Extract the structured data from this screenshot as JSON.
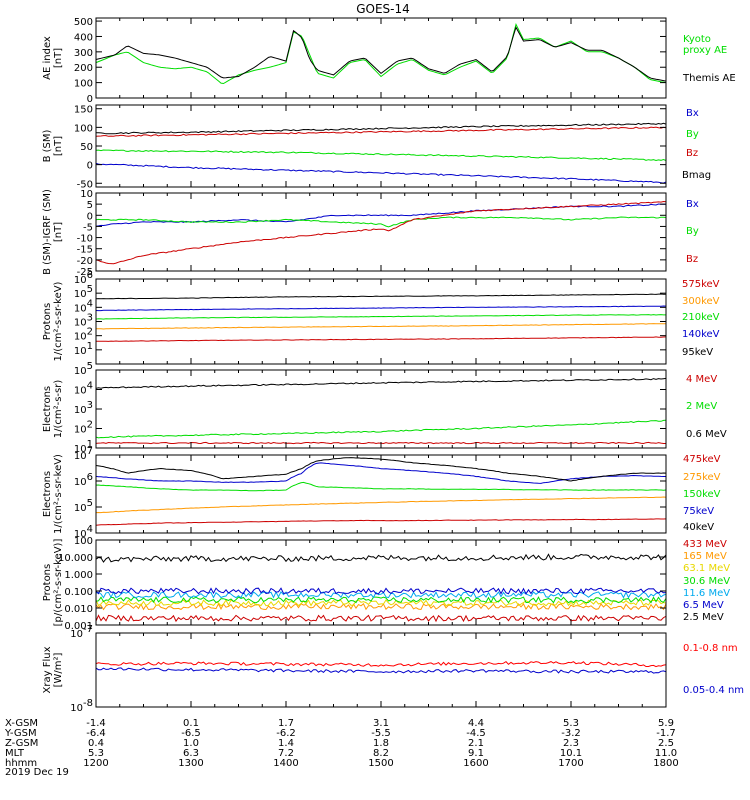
{
  "title": "GOES-14",
  "date": "2019 Dec 19",
  "colors": {
    "black": "#000000",
    "green": "#00dd00",
    "red": "#cc0000",
    "blue": "#0000cc",
    "orange": "#ff9900",
    "yellow": "#e8d800",
    "cyan": "#00aaee",
    "purple": "#aa0077",
    "red_bright": "#ff0000"
  },
  "ephemeris": {
    "rows": [
      {
        "label": "X-GSM",
        "values": [
          "-1.4",
          "0.1",
          "1.7",
          "3.1",
          "4.4",
          "5.3",
          "5.9"
        ]
      },
      {
        "label": "Y-GSM",
        "values": [
          "-6.4",
          "-6.5",
          "-6.2",
          "-5.5",
          "-4.5",
          "-3.2",
          "-1.7"
        ]
      },
      {
        "label": "Z-GSM",
        "values": [
          "0.4",
          "1.0",
          "1.4",
          "1.8",
          "2.1",
          "2.3",
          "2.5"
        ]
      },
      {
        "label": "MLT",
        "values": [
          "5.3",
          "6.3",
          "7.2",
          "8.2",
          "9.1",
          "10.1",
          "11.0"
        ]
      },
      {
        "label": "hhmm",
        "values": [
          "1200",
          "1300",
          "1400",
          "1500",
          "1600",
          "1700",
          "1800"
        ]
      }
    ]
  },
  "chart_data": [
    {
      "type": "line",
      "id": "ae",
      "ylabel": [
        "AE index",
        "[nT]"
      ],
      "ylim": [
        0,
        520
      ],
      "scale": "linear",
      "ticks": [
        {
          "v": 0,
          "t": "0"
        },
        {
          "v": 100,
          "t": "100"
        },
        {
          "v": 200,
          "t": "200"
        },
        {
          "v": 300,
          "t": "300"
        },
        {
          "v": 400,
          "t": "400"
        },
        {
          "v": 500,
          "t": "500"
        }
      ],
      "x": [
        12.0,
        12.2,
        12.33,
        12.5,
        12.67,
        12.83,
        13.0,
        13.17,
        13.33,
        13.5,
        13.67,
        13.83,
        14.0,
        14.08,
        14.17,
        14.25,
        14.33,
        14.5,
        14.67,
        14.83,
        15.0,
        15.17,
        15.33,
        15.5,
        15.67,
        15.83,
        16.0,
        16.17,
        16.33,
        16.42,
        16.5,
        16.67,
        16.83,
        17.0,
        17.17,
        17.33,
        17.5,
        17.67,
        17.83,
        18.0
      ],
      "series": [
        {
          "name": "Kyoto proxy AE",
          "color": "#00dd00",
          "legend": [
            "Kyoto",
            "proxy AE"
          ],
          "values": [
            230,
            280,
            300,
            230,
            200,
            190,
            200,
            170,
            90,
            150,
            180,
            200,
            230,
            430,
            400,
            280,
            160,
            130,
            230,
            250,
            140,
            220,
            250,
            180,
            150,
            200,
            240,
            160,
            260,
            480,
            380,
            390,
            330,
            370,
            300,
            300,
            260,
            200,
            120,
            100
          ]
        },
        {
          "name": "Themis AE",
          "color": "#000000",
          "legend": [
            "Themis AE"
          ],
          "values": [
            250,
            280,
            340,
            290,
            280,
            260,
            230,
            200,
            130,
            140,
            200,
            270,
            240,
            440,
            390,
            250,
            180,
            150,
            240,
            260,
            160,
            240,
            260,
            190,
            160,
            220,
            250,
            170,
            270,
            460,
            370,
            380,
            330,
            360,
            310,
            310,
            260,
            200,
            130,
            110
          ]
        }
      ]
    },
    {
      "type": "line",
      "id": "bsm",
      "ylabel": [
        "B (SM)",
        "[nT]"
      ],
      "ylim": [
        -60,
        160
      ],
      "scale": "linear",
      "ticks": [
        {
          "v": -50,
          "t": "-50"
        },
        {
          "v": 0,
          "t": "0"
        },
        {
          "v": 50,
          "t": "50"
        },
        {
          "v": 100,
          "t": "100"
        },
        {
          "v": 150,
          "t": "150"
        }
      ],
      "x": [
        12,
        13,
        14,
        15,
        16,
        17,
        18
      ],
      "series": [
        {
          "name": "Bx",
          "color": "#0000cc",
          "legend": [
            "Bx"
          ],
          "values": [
            2,
            -8,
            -15,
            -22,
            -30,
            -38,
            -48
          ]
        },
        {
          "name": "By",
          "color": "#00dd00",
          "legend": [
            "By"
          ],
          "values": [
            38,
            36,
            33,
            28,
            23,
            18,
            12
          ]
        },
        {
          "name": "Bz",
          "color": "#cc0000",
          "legend": [
            "Bz"
          ],
          "values": [
            76,
            80,
            84,
            88,
            92,
            96,
            100
          ]
        },
        {
          "name": "Bmag",
          "color": "#000000",
          "legend": [
            "Bmag"
          ],
          "values": [
            84,
            87,
            92,
            97,
            102,
            106,
            110
          ]
        }
      ]
    },
    {
      "type": "line",
      "id": "bigrf",
      "ylabel": [
        "B (SM)-IGRF (SM)",
        "[nT]"
      ],
      "ylim": [
        -25,
        10
      ],
      "scale": "linear",
      "ticks": [
        {
          "v": -25,
          "t": "-25"
        },
        {
          "v": -20,
          "t": "-20"
        },
        {
          "v": -15,
          "t": "-15"
        },
        {
          "v": -10,
          "t": "-10"
        },
        {
          "v": -5,
          "t": "-5"
        },
        {
          "v": 0,
          "t": "0"
        },
        {
          "v": 5,
          "t": "5"
        },
        {
          "v": 10,
          "t": "10"
        }
      ],
      "x": [
        12.0,
        12.17,
        12.5,
        13.0,
        13.5,
        14.0,
        14.5,
        15.0,
        15.08,
        15.33,
        15.67,
        16.0,
        16.5,
        17.0,
        17.5,
        18.0
      ],
      "series": [
        {
          "name": "Bx",
          "color": "#0000cc",
          "legend": [
            "Bx"
          ],
          "values": [
            -5,
            -4,
            -3,
            -3,
            -2,
            -3,
            0,
            0,
            0,
            0,
            1,
            2,
            3,
            4,
            4,
            5
          ]
        },
        {
          "name": "By",
          "color": "#00dd00",
          "legend": [
            "By"
          ],
          "values": [
            -2,
            -2,
            -2,
            -3,
            -3,
            -2,
            -3,
            -4,
            -5,
            -2,
            -1,
            -1,
            -1,
            -2,
            -1,
            -1
          ]
        },
        {
          "name": "Bz",
          "color": "#cc0000",
          "legend": [
            "Bz"
          ],
          "values": [
            -20,
            -22,
            -18,
            -15,
            -12,
            -10,
            -8,
            -6,
            -7,
            -2,
            0,
            2,
            3,
            4,
            5,
            6
          ]
        }
      ]
    },
    {
      "type": "line",
      "id": "protons_low",
      "ylabel": [
        "Protons",
        "1/(cm²-s-sr-keV)"
      ],
      "ylim": [
        1,
        1000000
      ],
      "scale": "log",
      "ticks": [
        {
          "v": 10,
          "b": "10",
          "e": "1"
        },
        {
          "v": 100,
          "b": "10",
          "e": "2"
        },
        {
          "v": 1000,
          "b": "10",
          "e": "3"
        },
        {
          "v": 10000,
          "b": "10",
          "e": "4"
        },
        {
          "v": 100000,
          "b": "10",
          "e": "5"
        },
        {
          "v": 1000000,
          "b": "10",
          "e": "6"
        }
      ],
      "x": [
        12,
        13,
        14,
        15,
        16,
        17,
        18
      ],
      "series": [
        {
          "name": "575keV",
          "color": "#cc0000",
          "legend": [
            "575keV"
          ],
          "values": [
            40,
            45,
            50,
            55,
            60,
            70,
            80
          ]
        },
        {
          "name": "300keV",
          "color": "#ff9900",
          "legend": [
            "300keV"
          ],
          "values": [
            300,
            350,
            400,
            450,
            500,
            600,
            700
          ]
        },
        {
          "name": "210keV",
          "color": "#00dd00",
          "legend": [
            "210keV"
          ],
          "values": [
            1500,
            1800,
            2000,
            2200,
            2500,
            2800,
            3000
          ]
        },
        {
          "name": "140keV",
          "color": "#0000cc",
          "legend": [
            "140keV"
          ],
          "values": [
            6000,
            7000,
            8000,
            9000,
            10000,
            11000,
            12000
          ]
        },
        {
          "name": "95keV",
          "color": "#000000",
          "legend": [
            "95keV"
          ],
          "values": [
            40000,
            45000,
            55000,
            60000,
            65000,
            75000,
            85000
          ]
        }
      ]
    },
    {
      "type": "line",
      "id": "electrons_high",
      "ylabel": [
        "Electrons",
        "1/(cm²-s-sr)"
      ],
      "ylim": [
        10,
        100000
      ],
      "scale": "log",
      "ticks": [
        {
          "v": 10,
          "b": "10",
          "e": "1"
        },
        {
          "v": 100,
          "b": "10",
          "e": "2"
        },
        {
          "v": 1000,
          "b": "10",
          "e": "3"
        },
        {
          "v": 10000,
          "b": "10",
          "e": "4"
        },
        {
          "v": 100000,
          "b": "10",
          "e": "5"
        }
      ],
      "x": [
        12,
        13,
        14,
        15,
        16,
        17,
        18
      ],
      "series": [
        {
          "name": "4 MeV",
          "color": "#cc0000",
          "legend": [
            "4 MeV"
          ],
          "values": [
            18,
            18,
            18,
            18,
            18,
            18,
            18
          ]
        },
        {
          "name": "2 MeV",
          "color": "#00dd00",
          "legend": [
            "2 MeV"
          ],
          "values": [
            35,
            45,
            55,
            70,
            100,
            150,
            250
          ]
        },
        {
          "name": "0.6 MeV",
          "color": "#000000",
          "legend": [
            "0.6 MeV"
          ],
          "values": [
            12000,
            15000,
            18000,
            22000,
            26000,
            30000,
            35000
          ]
        }
      ]
    },
    {
      "type": "line",
      "id": "electrons_low",
      "ylabel": [
        "Electrons",
        "1/(cm²-s-sr-keV)"
      ],
      "ylim": [
        10000,
        10000000
      ],
      "scale": "log",
      "ticks": [
        {
          "v": 10000,
          "b": "10",
          "e": "4"
        },
        {
          "v": 100000,
          "b": "10",
          "e": "5"
        },
        {
          "v": 1000000,
          "b": "10",
          "e": "6"
        },
        {
          "v": 10000000,
          "b": "10",
          "e": "7"
        }
      ],
      "x": [
        12.0,
        12.33,
        12.67,
        13.0,
        13.33,
        13.67,
        14.0,
        14.17,
        14.33,
        14.67,
        15.0,
        15.33,
        15.67,
        16.0,
        16.33,
        16.67,
        17.0,
        17.33,
        17.67,
        18.0
      ],
      "series": [
        {
          "name": "475keV",
          "color": "#cc0000",
          "legend": [
            "475keV"
          ],
          "values": [
            20000,
            22000,
            24000,
            25000,
            26000,
            27000,
            28000,
            29000,
            29000,
            30000,
            30000,
            30000,
            31000,
            31000,
            32000,
            32000,
            33000,
            33000,
            34000,
            35000
          ]
        },
        {
          "name": "275keV",
          "color": "#ff9900",
          "legend": [
            "275keV"
          ],
          "values": [
            60000,
            70000,
            80000,
            90000,
            100000,
            110000,
            120000,
            125000,
            130000,
            140000,
            150000,
            160000,
            170000,
            180000,
            190000,
            200000,
            210000,
            220000,
            230000,
            240000
          ]
        },
        {
          "name": "150keV",
          "color": "#00dd00",
          "legend": [
            "150keV"
          ],
          "values": [
            700000,
            600000,
            500000,
            450000,
            450000,
            420000,
            450000,
            900000,
            600000,
            550000,
            500000,
            500000,
            480000,
            480000,
            470000,
            460000,
            450000,
            450000,
            450000,
            450000
          ]
        },
        {
          "name": "75keV",
          "color": "#0000cc",
          "legend": [
            "75keV"
          ],
          "values": [
            1500000,
            1200000,
            1000000,
            1000000,
            900000,
            900000,
            1000000,
            2000000,
            5000000,
            4000000,
            3000000,
            2500000,
            2000000,
            1500000,
            1000000,
            800000,
            1200000,
            1500000,
            1600000,
            1500000
          ]
        },
        {
          "name": "40keV",
          "color": "#000000",
          "legend": [
            "40keV"
          ],
          "values": [
            4000000,
            2000000,
            3000000,
            2500000,
            1200000,
            1500000,
            1800000,
            3000000,
            6000000,
            8000000,
            7000000,
            5000000,
            4000000,
            3000000,
            2000000,
            1500000,
            1000000,
            1500000,
            2000000,
            2000000
          ]
        }
      ]
    },
    {
      "type": "line",
      "id": "protons_high",
      "ylabel": [
        "Protons",
        "[p/(cm²-s-sr-keV)]"
      ],
      "ylim": [
        0.001,
        100
      ],
      "scale": "log",
      "ticks": [
        {
          "v": 0.001,
          "t": "0.001"
        },
        {
          "v": 0.01,
          "t": "0.010"
        },
        {
          "v": 0.1,
          "t": "0.100"
        },
        {
          "v": 1,
          "t": "1.000"
        },
        {
          "v": 10,
          "t": "10.000"
        },
        {
          "v": 100,
          "t": "100"
        }
      ],
      "x": [
        12,
        13,
        14,
        15,
        16,
        17,
        18
      ],
      "series": [
        {
          "name": "433 MeV",
          "color": "#cc0000",
          "legend": [
            "433 MeV"
          ],
          "values": [
            0.0025,
            0.0025,
            0.0025,
            0.0025,
            0.0025,
            0.0025,
            0.0025
          ]
        },
        {
          "name": "165 MeV",
          "color": "#ff9900",
          "legend": [
            "165 MeV"
          ],
          "values": [
            0.012,
            0.012,
            0.012,
            0.012,
            0.012,
            0.012,
            0.012
          ]
        },
        {
          "name": "63.1 MeV",
          "color": "#e8d800",
          "legend": [
            "63.1 MeV"
          ],
          "values": [
            0.02,
            0.02,
            0.02,
            0.02,
            0.02,
            0.02,
            0.02
          ]
        },
        {
          "name": "30.6 MeV",
          "color": "#00dd00",
          "legend": [
            "30.6 MeV"
          ],
          "values": [
            0.03,
            0.03,
            0.03,
            0.03,
            0.03,
            0.03,
            0.03
          ]
        },
        {
          "name": "11.6 MeV",
          "color": "#00aaee",
          "legend": [
            "11.6 MeV"
          ],
          "values": [
            0.06,
            0.06,
            0.06,
            0.06,
            0.06,
            0.06,
            0.06
          ]
        },
        {
          "name": "6.5 MeV",
          "color": "#0000cc",
          "legend": [
            "6.5 MeV"
          ],
          "values": [
            0.1,
            0.1,
            0.1,
            0.1,
            0.1,
            0.1,
            0.1
          ]
        },
        {
          "name": "2.5 MeV",
          "color": "#000000",
          "legend": [
            "2.5 MeV"
          ],
          "values": [
            7,
            8,
            8,
            9,
            9,
            10,
            10
          ]
        }
      ]
    },
    {
      "type": "line",
      "id": "xray",
      "ylabel": [
        "Xray Flux",
        "[W/m²]"
      ],
      "ylim": [
        1e-08,
        1e-07
      ],
      "scale": "log",
      "ticks": [
        {
          "v": 1e-08,
          "b": "10",
          "e": "-8"
        },
        {
          "v": 1e-07,
          "b": "10",
          "e": "-7"
        }
      ],
      "x": [
        12,
        13,
        14,
        15,
        16,
        17,
        18
      ],
      "series": [
        {
          "name": "0.1-0.8 nm",
          "color": "#ff0000",
          "legend": [
            "0.1-0.8 nm"
          ],
          "values": [
            3.8e-08,
            3.9e-08,
            3.8e-08,
            3.7e-08,
            3.9e-08,
            4e-08,
            3.6e-08
          ]
        },
        {
          "name": "0.05-0.4 nm",
          "color": "#0000cc",
          "legend": [
            "0.05-0.4 nm"
          ],
          "values": [
            3.3e-08,
            3.2e-08,
            3.1e-08,
            3e-08,
            3.1e-08,
            3e-08,
            3e-08
          ]
        }
      ]
    }
  ]
}
